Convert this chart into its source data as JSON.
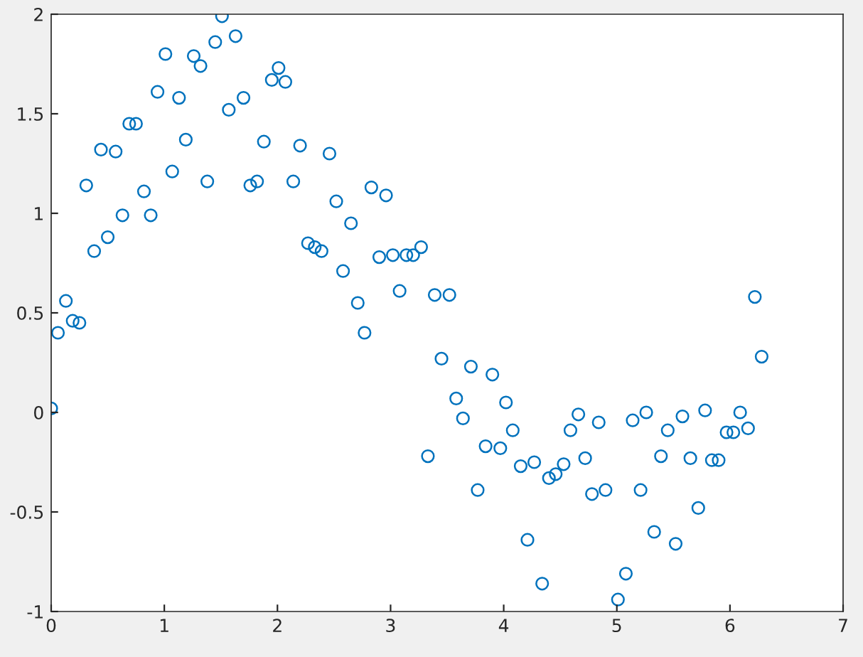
{
  "chart_data": {
    "type": "scatter",
    "marker": "circle",
    "grid": false,
    "legend": false,
    "x": [
      0,
      0.06,
      0.13,
      0.19,
      0.25,
      0.31,
      0.38,
      0.44,
      0.5,
      0.57,
      0.63,
      0.69,
      0.75,
      0.82,
      0.88,
      0.94,
      1.01,
      1.07,
      1.13,
      1.19,
      1.26,
      1.32,
      1.38,
      1.45,
      1.51,
      1.57,
      1.63,
      1.7,
      1.76,
      1.82,
      1.88,
      1.95,
      2.01,
      2.07,
      2.14,
      2.2,
      2.27,
      2.33,
      2.39,
      2.46,
      2.52,
      2.58,
      2.65,
      2.71,
      2.77,
      2.83,
      2.9,
      2.96,
      3.02,
      3.08,
      3.14,
      3.2,
      3.27,
      3.33,
      3.39,
      3.45,
      3.52,
      3.58,
      3.64,
      3.71,
      3.77,
      3.84,
      3.9,
      3.97,
      4.02,
      4.08,
      4.15,
      4.21,
      4.27,
      4.34,
      4.4,
      4.46,
      4.53,
      4.59,
      4.66,
      4.72,
      4.78,
      4.84,
      4.9,
      5.01,
      5.08,
      5.14,
      5.21,
      5.26,
      5.33,
      5.39,
      5.45,
      5.52,
      5.58,
      5.65,
      5.72,
      5.78,
      5.84,
      5.9,
      5.97,
      6.03,
      6.09,
      6.16,
      6.22,
      6.28
    ],
    "series": [
      {
        "color": "#0072bd",
        "values": [
          0.02,
          0.4,
          0.56,
          0.46,
          0.45,
          1.14,
          0.81,
          1.32,
          0.88,
          1.31,
          0.99,
          1.45,
          1.45,
          1.11,
          0.99,
          1.61,
          1.8,
          1.21,
          1.58,
          1.37,
          1.79,
          1.74,
          1.16,
          1.86,
          1.99,
          1.52,
          1.89,
          1.58,
          1.14,
          1.16,
          1.36,
          1.67,
          1.73,
          1.66,
          1.16,
          1.34,
          0.85,
          0.83,
          0.81,
          1.3,
          1.06,
          0.71,
          0.95,
          0.55,
          0.4,
          1.13,
          0.78,
          1.09,
          0.79,
          0.61,
          0.79,
          0.79,
          0.83,
          -0.22,
          0.59,
          0.27,
          0.59,
          0.07,
          -0.03,
          0.23,
          -0.39,
          -0.17,
          0.19,
          -0.18,
          0.05,
          -0.09,
          -0.27,
          -0.64,
          -0.25,
          -0.86,
          -0.33,
          -0.31,
          -0.26,
          -0.09,
          -0.01,
          -0.23,
          -0.41,
          -0.05,
          -0.39,
          -0.94,
          -0.81,
          -0.04,
          -0.39,
          0.0,
          -0.6,
          -0.22,
          -0.09,
          -0.66,
          -0.02,
          -0.23,
          -0.48,
          0.01,
          -0.24,
          -0.24,
          -0.1,
          -0.1,
          0.0,
          -0.08,
          0.58,
          0.28
        ]
      }
    ],
    "xlim": [
      0,
      7
    ],
    "ylim": [
      -1,
      2
    ],
    "xticks": [
      0,
      1,
      2,
      3,
      4,
      5,
      6,
      7
    ],
    "yticks": [
      -1,
      -0.5,
      0,
      0.5,
      1,
      1.5,
      2
    ]
  }
}
